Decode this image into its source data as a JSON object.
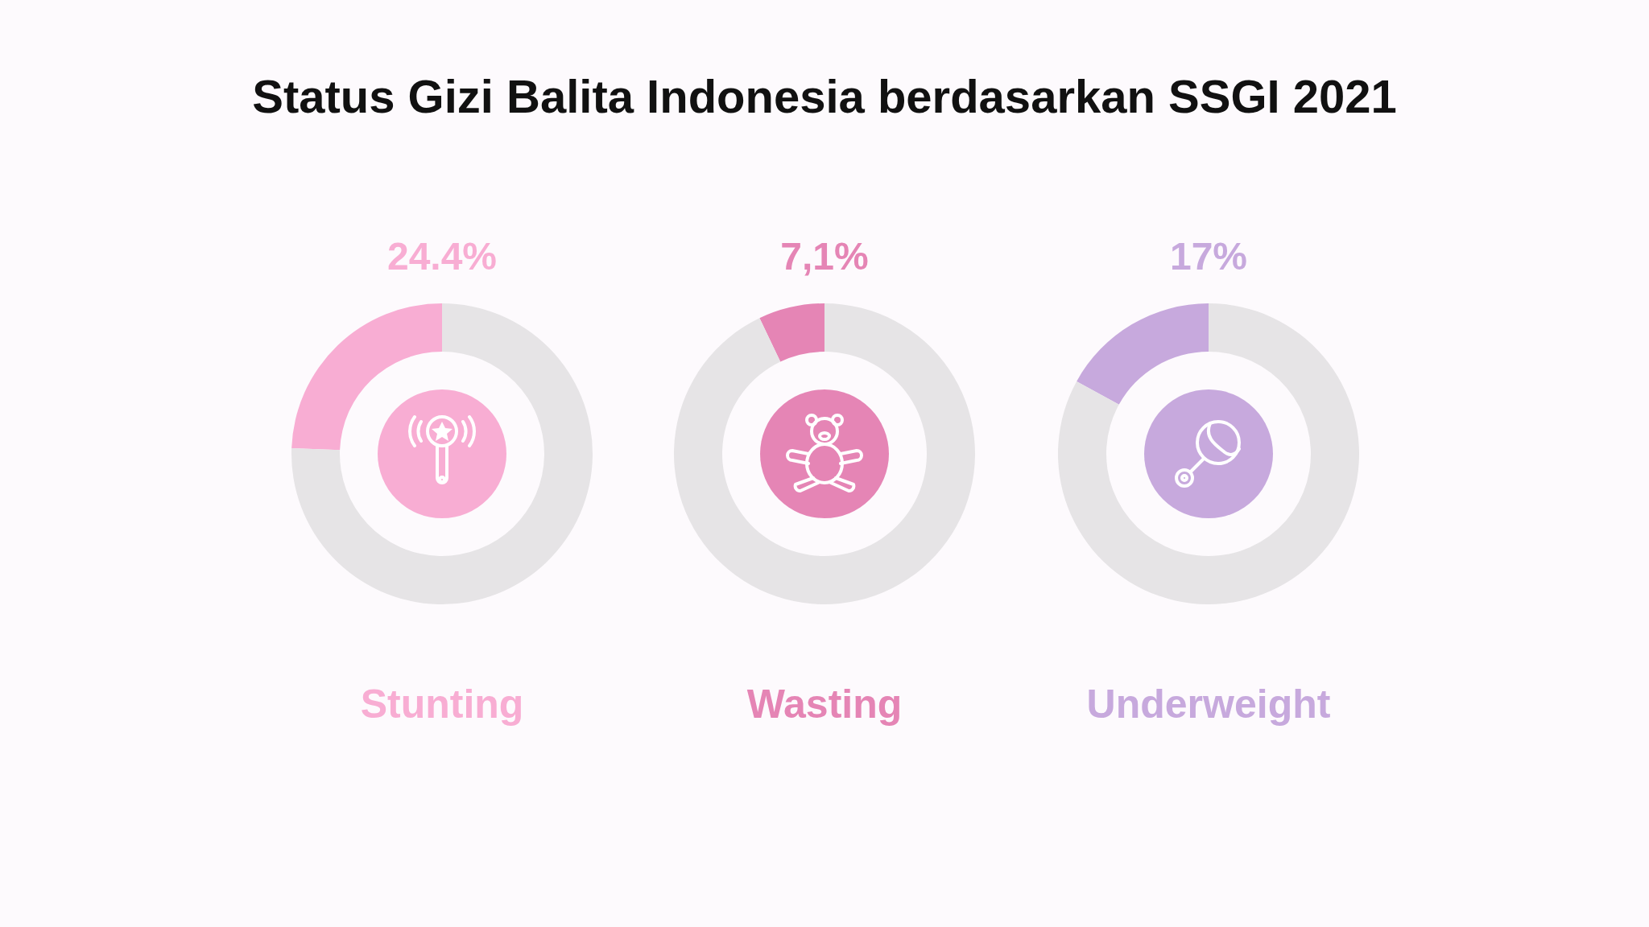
{
  "chart_data": [
    {
      "type": "donut",
      "title": "Status Gizi Balita Indonesia berdasarkan SSGI 2021",
      "xlabel": "Stunting",
      "categories": [
        null,
        null
      ],
      "values": [
        24.4,
        75.6
      ],
      "colors": [
        "#f8add3",
        "#e6e4e6"
      ],
      "value_labels": [
        "24.4%",
        null
      ]
    },
    {
      "type": "donut",
      "xlabel": "Wasting",
      "categories": [
        null,
        null
      ],
      "values": [
        7.1,
        92.9
      ],
      "colors": [
        "#e585b5",
        "#e6e4e6"
      ],
      "value_labels": [
        "7,1%",
        null
      ]
    },
    {
      "type": "donut",
      "xlabel": "Underweight",
      "categories": [
        null,
        null
      ],
      "values": [
        17,
        83
      ],
      "colors": [
        "#c7a9dd",
        "#e6e4e6"
      ],
      "value_labels": [
        "17%",
        null
      ]
    }
  ]
}
